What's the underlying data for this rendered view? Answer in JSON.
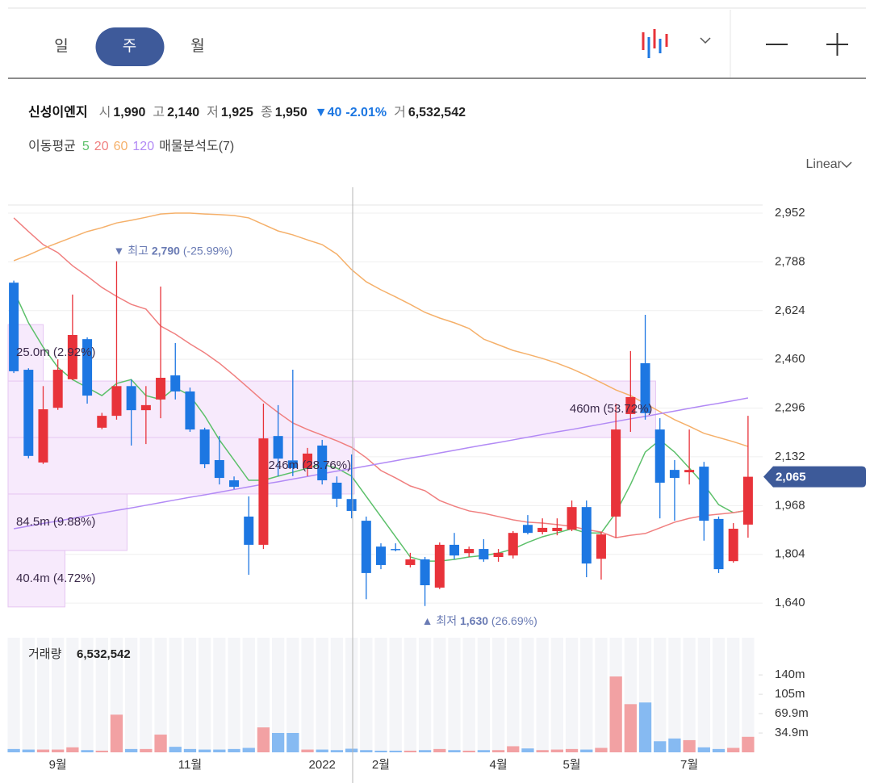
{
  "toolbar": {
    "tabs": [
      "일",
      "주",
      "월"
    ],
    "active": "주",
    "scale_mode": "Linear"
  },
  "info": {
    "name": "신성이엔지",
    "items": [
      {
        "label": "시",
        "value": "1,990"
      },
      {
        "label": "고",
        "value": "2,140"
      },
      {
        "label": "저",
        "value": "1,925"
      },
      {
        "label": "종",
        "value": "1,950"
      }
    ],
    "change": "▼40",
    "change_pct": "-2.01%",
    "volume_label": "거",
    "volume": "6,532,542"
  },
  "ma_legend": {
    "label": "이동평균",
    "profile": "매물분석도(7)"
  },
  "chart_data": {
    "type": "candlestick",
    "categories": [
      null,
      null,
      null,
      "9월",
      null,
      null,
      null,
      null,
      null,
      null,
      null,
      null,
      "11월",
      null,
      null,
      null,
      null,
      null,
      null,
      null,
      null,
      "2022",
      null,
      null,
      null,
      "2월",
      null,
      null,
      null,
      null,
      null,
      null,
      null,
      "4월",
      null,
      null,
      null,
      null,
      "5월",
      null,
      null,
      null,
      null,
      null,
      null,
      null,
      "7월",
      null,
      null,
      null,
      null
    ],
    "open": [
      2718,
      2425,
      2113,
      2297,
      2393,
      2528,
      2230,
      2270,
      2370,
      2289,
      2325,
      2406,
      2352,
      2224,
      2121,
      2053,
      1931,
      1836,
      2202,
      2120,
      2094,
      2170,
      2045,
      1990,
      1917,
      1830,
      1822,
      1768,
      1787,
      1692,
      1836,
      1808,
      1822,
      1795,
      1800,
      1903,
      1879,
      1882,
      1887,
      1963,
      1789,
      1931,
      2276,
      2447,
      2224,
      2088,
      2080,
      2099,
      1923,
      1781,
      1904
    ],
    "high": [
      2725,
      2430,
      2370,
      2460,
      2678,
      2534,
      2280,
      2790,
      2392,
      2370,
      2705,
      2515,
      2365,
      2230,
      2202,
      2066,
      1999,
      2311,
      2306,
      2425,
      2162,
      2189,
      2066,
      2140,
      1931,
      1841,
      1841,
      1809,
      1795,
      1844,
      1876,
      1830,
      1855,
      1822,
      1882,
      1936,
      1925,
      1925,
      1985,
      1985,
      1880,
      2311,
      2488,
      2610,
      2262,
      2121,
      2224,
      2115,
      1931,
      1909,
      2270
    ],
    "low": [
      2414,
      2127,
      2108,
      2290,
      2390,
      2311,
      2225,
      2257,
      2170,
      2175,
      2262,
      2325,
      2216,
      2094,
      2039,
      2023,
      1735,
      1822,
      2067,
      2067,
      2067,
      2039,
      1963,
      1925,
      1653,
      1754,
      1814,
      1760,
      1630,
      1687,
      1787,
      1795,
      1779,
      1779,
      1790,
      1871,
      1871,
      1868,
      1882,
      1727,
      1719,
      1860,
      2216,
      2257,
      1925,
      1917,
      2039,
      1850,
      1741,
      1776,
      1860
    ],
    "close": [
      2420,
      2135,
      2292,
      2425,
      2542,
      2338,
      2270,
      2370,
      2289,
      2306,
      2398,
      2352,
      2224,
      2107,
      2061,
      2031,
      1836,
      2194,
      2126,
      2094,
      2143,
      2053,
      1991,
      1950,
      1741,
      1768,
      1819,
      1787,
      1700,
      1836,
      1800,
      1822,
      1787,
      1809,
      1876,
      1876,
      1893,
      1893,
      1963,
      1773,
      1871,
      2224,
      2333,
      2279,
      2045,
      2061,
      2088,
      1917,
      1754,
      1890,
      2065
    ],
    "up_color": "#e8333a",
    "down_color": "#1d77e2",
    "series": [
      {
        "name": "5",
        "color": "#5cc06a",
        "values": [
          2691,
          2583,
          2501,
          2433,
          2392,
          2365,
          2338,
          2379,
          2392,
          2338,
          2325,
          2365,
          2338,
          2270,
          2189,
          2121,
          2053,
          2053,
          2067,
          2080,
          2094,
          2107,
          2094,
          2067,
          1999,
          1931,
          1863,
          1795,
          1781,
          1781,
          1787,
          1795,
          1800,
          1808,
          1822,
          1844,
          1863,
          1876,
          1890,
          1876,
          1876,
          1944,
          2039,
          2148,
          2189,
          2148,
          2094,
          2039,
          1971,
          1944,
          1952
        ]
      },
      {
        "name": "20",
        "color": "#f07f7f",
        "values": [
          2936,
          2890,
          2846,
          2819,
          2775,
          2740,
          2702,
          2672,
          2645,
          2629,
          2572,
          2545,
          2512,
          2482,
          2447,
          2406,
          2363,
          2319,
          2281,
          2246,
          2224,
          2205,
          2186,
          2164,
          2129,
          2086,
          2061,
          2034,
          2018,
          1985,
          1966,
          1950,
          1942,
          1931,
          1920,
          1912,
          1909,
          1904,
          1898,
          1887,
          1879,
          1860,
          1868,
          1874,
          1893,
          1912,
          1925,
          1934,
          1939,
          1944,
          1953
        ]
      },
      {
        "name": "60",
        "color": "#f5b06a",
        "values": [
          2792,
          2811,
          2833,
          2852,
          2871,
          2890,
          2903,
          2919,
          2928,
          2938,
          2949,
          2952,
          2952,
          2949,
          2947,
          2944,
          2936,
          2914,
          2892,
          2879,
          2862,
          2846,
          2814,
          2762,
          2721,
          2694,
          2670,
          2645,
          2618,
          2599,
          2583,
          2564,
          2528,
          2509,
          2490,
          2477,
          2463,
          2447,
          2428,
          2406,
          2382,
          2357,
          2338,
          2311,
          2284,
          2257,
          2235,
          2211,
          2197,
          2183,
          2167
        ]
      },
      {
        "name": "120",
        "color": "#b28af5",
        "values": [
          1890,
          1899,
          1908,
          1916,
          1925,
          1934,
          1943,
          1952,
          1960,
          1969,
          1978,
          1987,
          1996,
          2004,
          2013,
          2022,
          2031,
          2040,
          2048,
          2057,
          2066,
          2075,
          2084,
          2092,
          2101,
          2110,
          2119,
          2128,
          2136,
          2145,
          2154,
          2163,
          2172,
          2180,
          2189,
          2198,
          2207,
          2216,
          2224,
          2233,
          2242,
          2251,
          2260,
          2268,
          2277,
          2286,
          2295,
          2304,
          2312,
          2321,
          2330
        ]
      }
    ],
    "ylim": [
      1537,
      3039
    ],
    "yticks": [
      {
        "value": 1640,
        "label": "1,640"
      },
      {
        "value": 1804,
        "label": "1,804"
      },
      {
        "value": 1968,
        "label": "1,968"
      },
      {
        "value": 2132,
        "label": "2,132"
      },
      {
        "value": 2296,
        "label": "2,296"
      },
      {
        "value": 2460,
        "label": "2,460"
      },
      {
        "value": 2624,
        "label": "2,624"
      },
      {
        "value": 2788,
        "label": "2,788"
      },
      {
        "value": 2952,
        "label": "2,952"
      }
    ],
    "grid": true,
    "last": {
      "value": 2065,
      "label": "2,065"
    },
    "annotations": [
      {
        "marker": "▼",
        "text": "최고",
        "value": 2790,
        "label": "2,790",
        "change": "(-25.99%)",
        "kind": "high"
      },
      {
        "marker": "▲",
        "text": "최저",
        "value": 1630,
        "label": "1,630",
        "change": "(26.69%)",
        "kind": "low"
      }
    ],
    "profile": {
      "bins": [
        1627,
        1817,
        2007,
        2197,
        2387,
        2577,
        2767,
        2957
      ],
      "volumes": [
        40400000,
        84500000,
        246000000,
        460000000,
        25000000,
        0,
        0
      ],
      "value_labels": [
        "40.4m (4.72%)",
        "84.5m (9.88%)",
        "246m (28.76%)",
        "460m (53.72%)",
        "25.0m (2.92%)",
        null,
        null
      ],
      "xlim": [
        0,
        536000000
      ],
      "color": "#f7eafc",
      "edge_color": "#e6c6f2"
    },
    "volume_title": "거래량",
    "volume_value": "6,532,542",
    "volume": [
      6000000,
      5000000,
      5000000,
      5000000,
      9000000,
      4000000,
      3000000,
      68000000,
      6000000,
      6000000,
      32000000,
      10000000,
      6000000,
      5000000,
      5000000,
      6000000,
      8000000,
      45000000,
      35000000,
      35000000,
      5000000,
      5000000,
      4000000,
      6532542,
      4000000,
      3000000,
      3000000,
      3000000,
      4000000,
      6000000,
      4000000,
      3000000,
      4000000,
      4000000,
      11000000,
      7000000,
      4000000,
      5000000,
      6000000,
      5000000,
      8000000,
      137000000,
      87000000,
      90000000,
      20000000,
      25000000,
      22000000,
      9000000,
      6000000,
      8000000,
      28000000
    ],
    "volume_up_color": "#f2a1a3",
    "volume_down_color": "#86baf2",
    "volume_ylim": [
      0,
      207000000
    ],
    "volume_ticks": [
      {
        "value": 34900000,
        "label": "34.9m"
      },
      {
        "value": 69900000,
        "label": "69.9m"
      },
      {
        "value": 104800000,
        "label": "105m"
      },
      {
        "value": 139800000,
        "label": "140m"
      }
    ]
  }
}
